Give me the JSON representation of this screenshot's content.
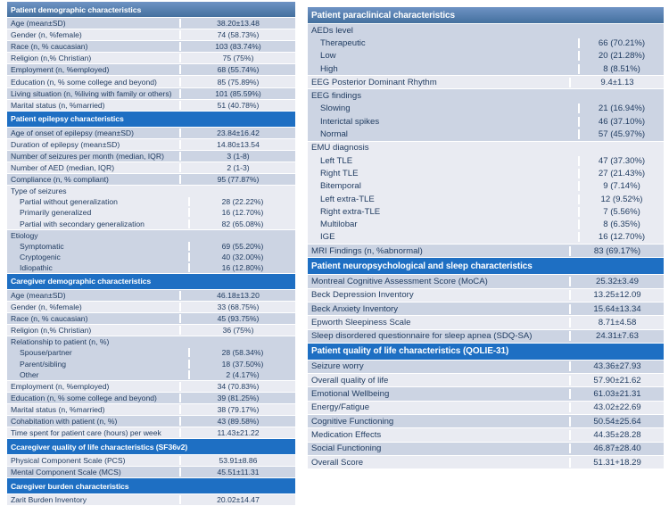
{
  "colors": {
    "section_header_blue": "#1e6fc3",
    "top_header_blue_start": "#6e93c4",
    "top_header_blue_end": "#44709e",
    "band_dark": "#ccd4e3",
    "band_light": "#e9ebf2",
    "text": "#1e3a5f",
    "header_text": "#ffffff",
    "page_background": "#ffffff"
  },
  "tables": [
    {
      "name": "characteristics-table-left",
      "rows": [
        {
          "type": "header",
          "style": "top",
          "label": "Patient demographic characteristics"
        },
        {
          "type": "row",
          "label": "Age (mean±SD)",
          "value": "38.20±13.48"
        },
        {
          "type": "row",
          "label": "Gender (n, %female)",
          "value": "74 (58.73%)"
        },
        {
          "type": "row",
          "label": "Race (n, % caucasian)",
          "value": "103 (83.74%)"
        },
        {
          "type": "row",
          "label": "Religion (n,% Christian)",
          "value": "75 (75%)"
        },
        {
          "type": "row",
          "label": "Employment (n, %employed)",
          "value": "68 (55.74%)"
        },
        {
          "type": "row",
          "label": "Education (n, % some college and beyond)",
          "value": "85 (75.89%)"
        },
        {
          "type": "row",
          "label": "Living situation (n, %living with family or others)",
          "value": "101 (85.59%)"
        },
        {
          "type": "row",
          "label": "Marital status (n, %married)",
          "value": "51 (40.78%)"
        },
        {
          "type": "header",
          "label": "Patient epilepsy  characteristics"
        },
        {
          "type": "row",
          "label": "Age of onset of epilepsy (mean±SD)",
          "value": "23.84±16.42"
        },
        {
          "type": "row",
          "label": "Duration of epilepsy (mean±SD)",
          "value": "14.80±13.54"
        },
        {
          "type": "row",
          "label": "Number of seizures per month (median, IQR)",
          "value": "3 (1-8)"
        },
        {
          "type": "row",
          "label": "Number of AED (median, IQR)",
          "value": "2 (1-3)"
        },
        {
          "type": "row",
          "label": "Compliance (n, % compliant)",
          "value": "95 (77.87%)"
        },
        {
          "type": "group",
          "label": "Type of seizures",
          "items": [
            {
              "label": "Partial without generalization",
              "value": "28 (22.22%)"
            },
            {
              "label": "Primarily generalized",
              "value": "16 (12.70%)"
            },
            {
              "label": "Partial with secondary generalization",
              "value": "82 (65.08%)"
            }
          ]
        },
        {
          "type": "group",
          "label": "Etiology",
          "items": [
            {
              "label": "Symptomatic",
              "value": "69 (55.20%)"
            },
            {
              "label": "Cryptogenic",
              "value": "40 (32.00%)"
            },
            {
              "label": "Idiopathic",
              "value": "16 (12.80%)"
            }
          ]
        },
        {
          "type": "header",
          "label": "Caregiver demographic characteristics"
        },
        {
          "type": "row",
          "label": "Age (mean±SD)",
          "value": "46.18±13.20"
        },
        {
          "type": "row",
          "label": "Gender (n, %female)",
          "value": "33 (68.75%)"
        },
        {
          "type": "row",
          "label": "Race (n, % caucasian)",
          "value": "45 (93.75%)"
        },
        {
          "type": "row",
          "label": "Religion (n,% Christian)",
          "value": "36 (75%)"
        },
        {
          "type": "group",
          "label": "Relationship to patient (n, %)",
          "items": [
            {
              "label": "Spouse/partner",
              "value": "28 (58.34%)"
            },
            {
              "label": "Parent/sibling",
              "value": "18 (37.50%)"
            },
            {
              "label": "Other",
              "value": "2 (4.17%)"
            }
          ]
        },
        {
          "type": "row",
          "label": "Employment (n, %employed)",
          "value": "34 (70.83%)"
        },
        {
          "type": "row",
          "label": "Education (n, % some college and beyond)",
          "value": "39 (81.25%)"
        },
        {
          "type": "row",
          "label": "Marital status (n, %married)",
          "value": "38 (79.17%)"
        },
        {
          "type": "row",
          "label": "Cohabitation with patient (n, %)",
          "value": "43 (89.58%)"
        },
        {
          "type": "row",
          "label": "Time spent for patient care (hours) per week",
          "value": "11.43±21.22"
        },
        {
          "type": "header",
          "label": "Ccaregiver quality of life characteristics (SF36v2)"
        },
        {
          "type": "row",
          "band": "light",
          "label": "Physical Component Scale (PCS)",
          "value": "53.91±8.86"
        },
        {
          "type": "row",
          "band": "dark",
          "label": "Mental Component Scale (MCS)",
          "value": "45.51±11.31"
        },
        {
          "type": "header",
          "label": "Caregiver burden  characteristics"
        },
        {
          "type": "row",
          "band": "light",
          "label": "Zarit Burden Inventory",
          "value": "20.02±14.47"
        }
      ]
    },
    {
      "name": "characteristics-table-right",
      "rows": [
        {
          "type": "header",
          "style": "top",
          "label": "Patient paraclinical  characteristics"
        },
        {
          "type": "group",
          "label": "AEDs level",
          "items": [
            {
              "label": "Therapeutic",
              "value": "66 (70.21%)"
            },
            {
              "label": "Low",
              "value": "20 (21.28%)"
            },
            {
              "label": "High",
              "value": "8 (8.51%)"
            }
          ]
        },
        {
          "type": "row",
          "label": "EEG Posterior Dominant Rhythm",
          "value": "9.4±1.13"
        },
        {
          "type": "group",
          "label": "EEG findings",
          "items": [
            {
              "label": "Slowing",
              "value": "21 (16.94%)"
            },
            {
              "label": "Interictal spikes",
              "value": "46 (37.10%)"
            },
            {
              "label": "Normal",
              "value": "57 (45.97%)"
            }
          ]
        },
        {
          "type": "group",
          "label": "EMU diagnosis",
          "items": [
            {
              "label": "Left TLE",
              "value": "47 (37.30%)"
            },
            {
              "label": "Right TLE",
              "value": "27 (21.43%)"
            },
            {
              "label": "Bitemporal",
              "value": "9 (7.14%)"
            },
            {
              "label": "Left extra-TLE",
              "value": "12 (9.52%)"
            },
            {
              "label": "Right extra-TLE",
              "value": "7 (5.56%)"
            },
            {
              "label": "Multilobar",
              "value": "8 (6.35%)"
            },
            {
              "label": "IGE",
              "value": "16 (12.70%)"
            }
          ]
        },
        {
          "type": "row",
          "label": "MRI Findings (n, %abnormal)",
          "value": "83 (69.17%)"
        },
        {
          "type": "header",
          "label": "Patient neuropsychological  and sleep characteristics"
        },
        {
          "type": "row",
          "label": "Montreal Cognitive Assessment Score (MoCA)",
          "value": "25.32±3.49"
        },
        {
          "type": "row",
          "label": "Beck Depression Inventory",
          "value": "13.25±12.09"
        },
        {
          "type": "row",
          "label": "Beck Anxiety Inventory",
          "value": "15.64±13.34"
        },
        {
          "type": "row",
          "label": "Epworth Sleepiness Scale",
          "value": "8.71±4.58"
        },
        {
          "type": "row",
          "label": "Sleep disordered questionnaire for sleep apnea (SDQ-SA)",
          "value": "24.31±7.63"
        },
        {
          "type": "header",
          "label": "Patient quality of life characteristics  (QOLIE-31)"
        },
        {
          "type": "row",
          "label": "Seizure worry",
          "value": "43.36±27.93"
        },
        {
          "type": "row",
          "label": "Overall quality of life",
          "value": "57.90±21.62"
        },
        {
          "type": "row",
          "label": "Emotional Wellbeing",
          "value": "61.03±21.31"
        },
        {
          "type": "row",
          "label": "Energy/Fatigue",
          "value": "43.02±22.69"
        },
        {
          "type": "row",
          "label": "Cognitive Functioning",
          "value": "50.54±25.64"
        },
        {
          "type": "row",
          "label": "Medication Effects",
          "value": "44.35±28.28"
        },
        {
          "type": "row",
          "label": "Social Functioning",
          "value": "46.87±28.40"
        },
        {
          "type": "row",
          "label": "Overall Score",
          "value": "51.31+18.29"
        }
      ]
    }
  ]
}
